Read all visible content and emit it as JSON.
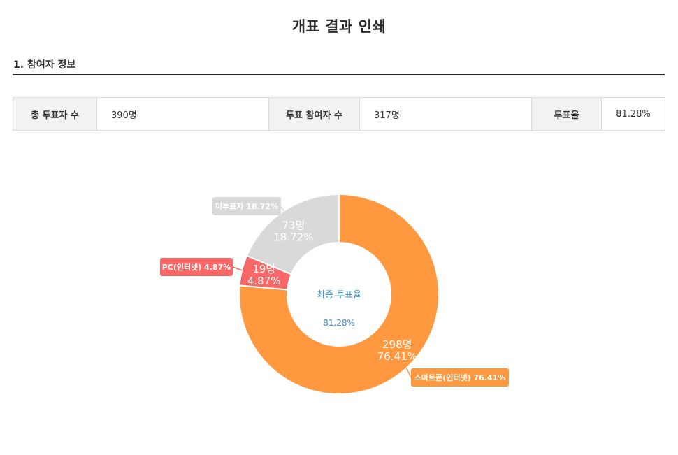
{
  "page": {
    "title": "개표 결과 인쇄"
  },
  "section1": {
    "title": "1. 참여자 정보"
  },
  "summary": {
    "total_voters_label": "총 투표자 수",
    "total_voters_value": "390명",
    "participants_label": "투표 참여자 수",
    "participants_value": "317명",
    "turnout_label": "투표율",
    "turnout_value": "81.28%"
  },
  "colors": {
    "smartphone": "#FF983F",
    "pc": "#F96766",
    "nonvoter": "#D9D9D9",
    "center_text": "#3A8DC0"
  },
  "chart_data": {
    "type": "pie",
    "donut": true,
    "center_label": "최종 투표율",
    "center_value": "81.28%",
    "slices": [
      {
        "name": "미투표자",
        "count": 73,
        "percent": 18.72,
        "count_label": "73명",
        "percent_label": "18.72%",
        "legend": "미투표자 18.72%"
      },
      {
        "name": "스마트폰(인터넷)",
        "count": 298,
        "percent": 76.41,
        "count_label": "298명",
        "percent_label": "76.41%",
        "legend": "스마트폰(인터넷) 76.41%"
      },
      {
        "name": "PC(인터넷)",
        "count": 19,
        "percent": 4.87,
        "count_label": "19명",
        "percent_label": "4.87%",
        "legend": "PC(인터넷) 4.87%"
      }
    ]
  }
}
